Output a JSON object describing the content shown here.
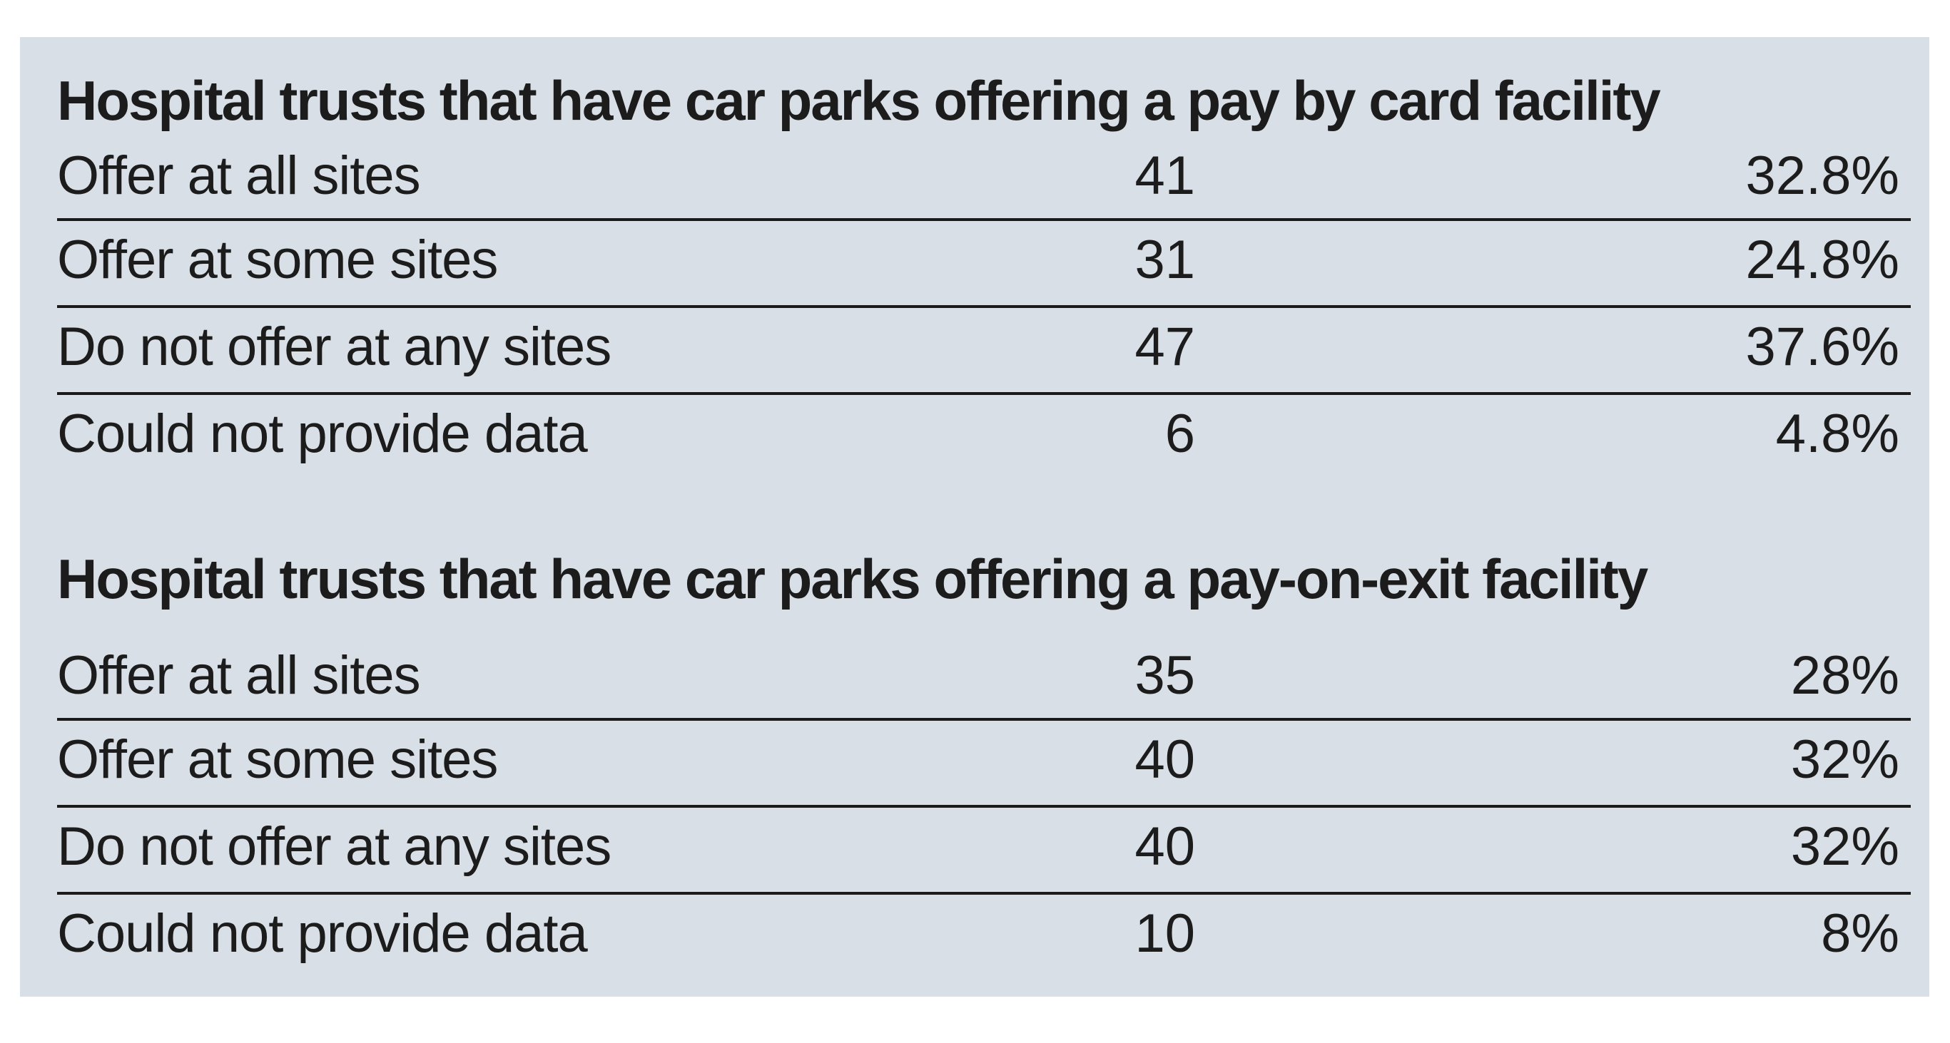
{
  "sections": [
    {
      "title": "Hospital trusts that have car parks offering a pay by card facility",
      "rows": [
        {
          "label": "Offer at all sites",
          "count": "41",
          "percent": "32.8%"
        },
        {
          "label": "Offer at some sites",
          "count": "31",
          "percent": "24.8%"
        },
        {
          "label": "Do not offer at any sites",
          "count": "47",
          "percent": "37.6%"
        },
        {
          "label": "Could not provide data",
          "count": "6",
          "percent": "4.8%"
        }
      ]
    },
    {
      "title": "Hospital trusts that have car parks offering a pay-on-exit facility",
      "rows": [
        {
          "label": "Offer at all sites",
          "count": "35",
          "percent": "28%"
        },
        {
          "label": "Offer at some sites",
          "count": "40",
          "percent": "32%"
        },
        {
          "label": "Do not offer at any sites",
          "count": "40",
          "percent": "32%"
        },
        {
          "label": "Could not provide data",
          "count": "10",
          "percent": "8%"
        }
      ]
    }
  ],
  "colors": {
    "panel_background": "#d9dfe6",
    "text": "#1c1c1c",
    "rule": "#1a1a1a"
  }
}
